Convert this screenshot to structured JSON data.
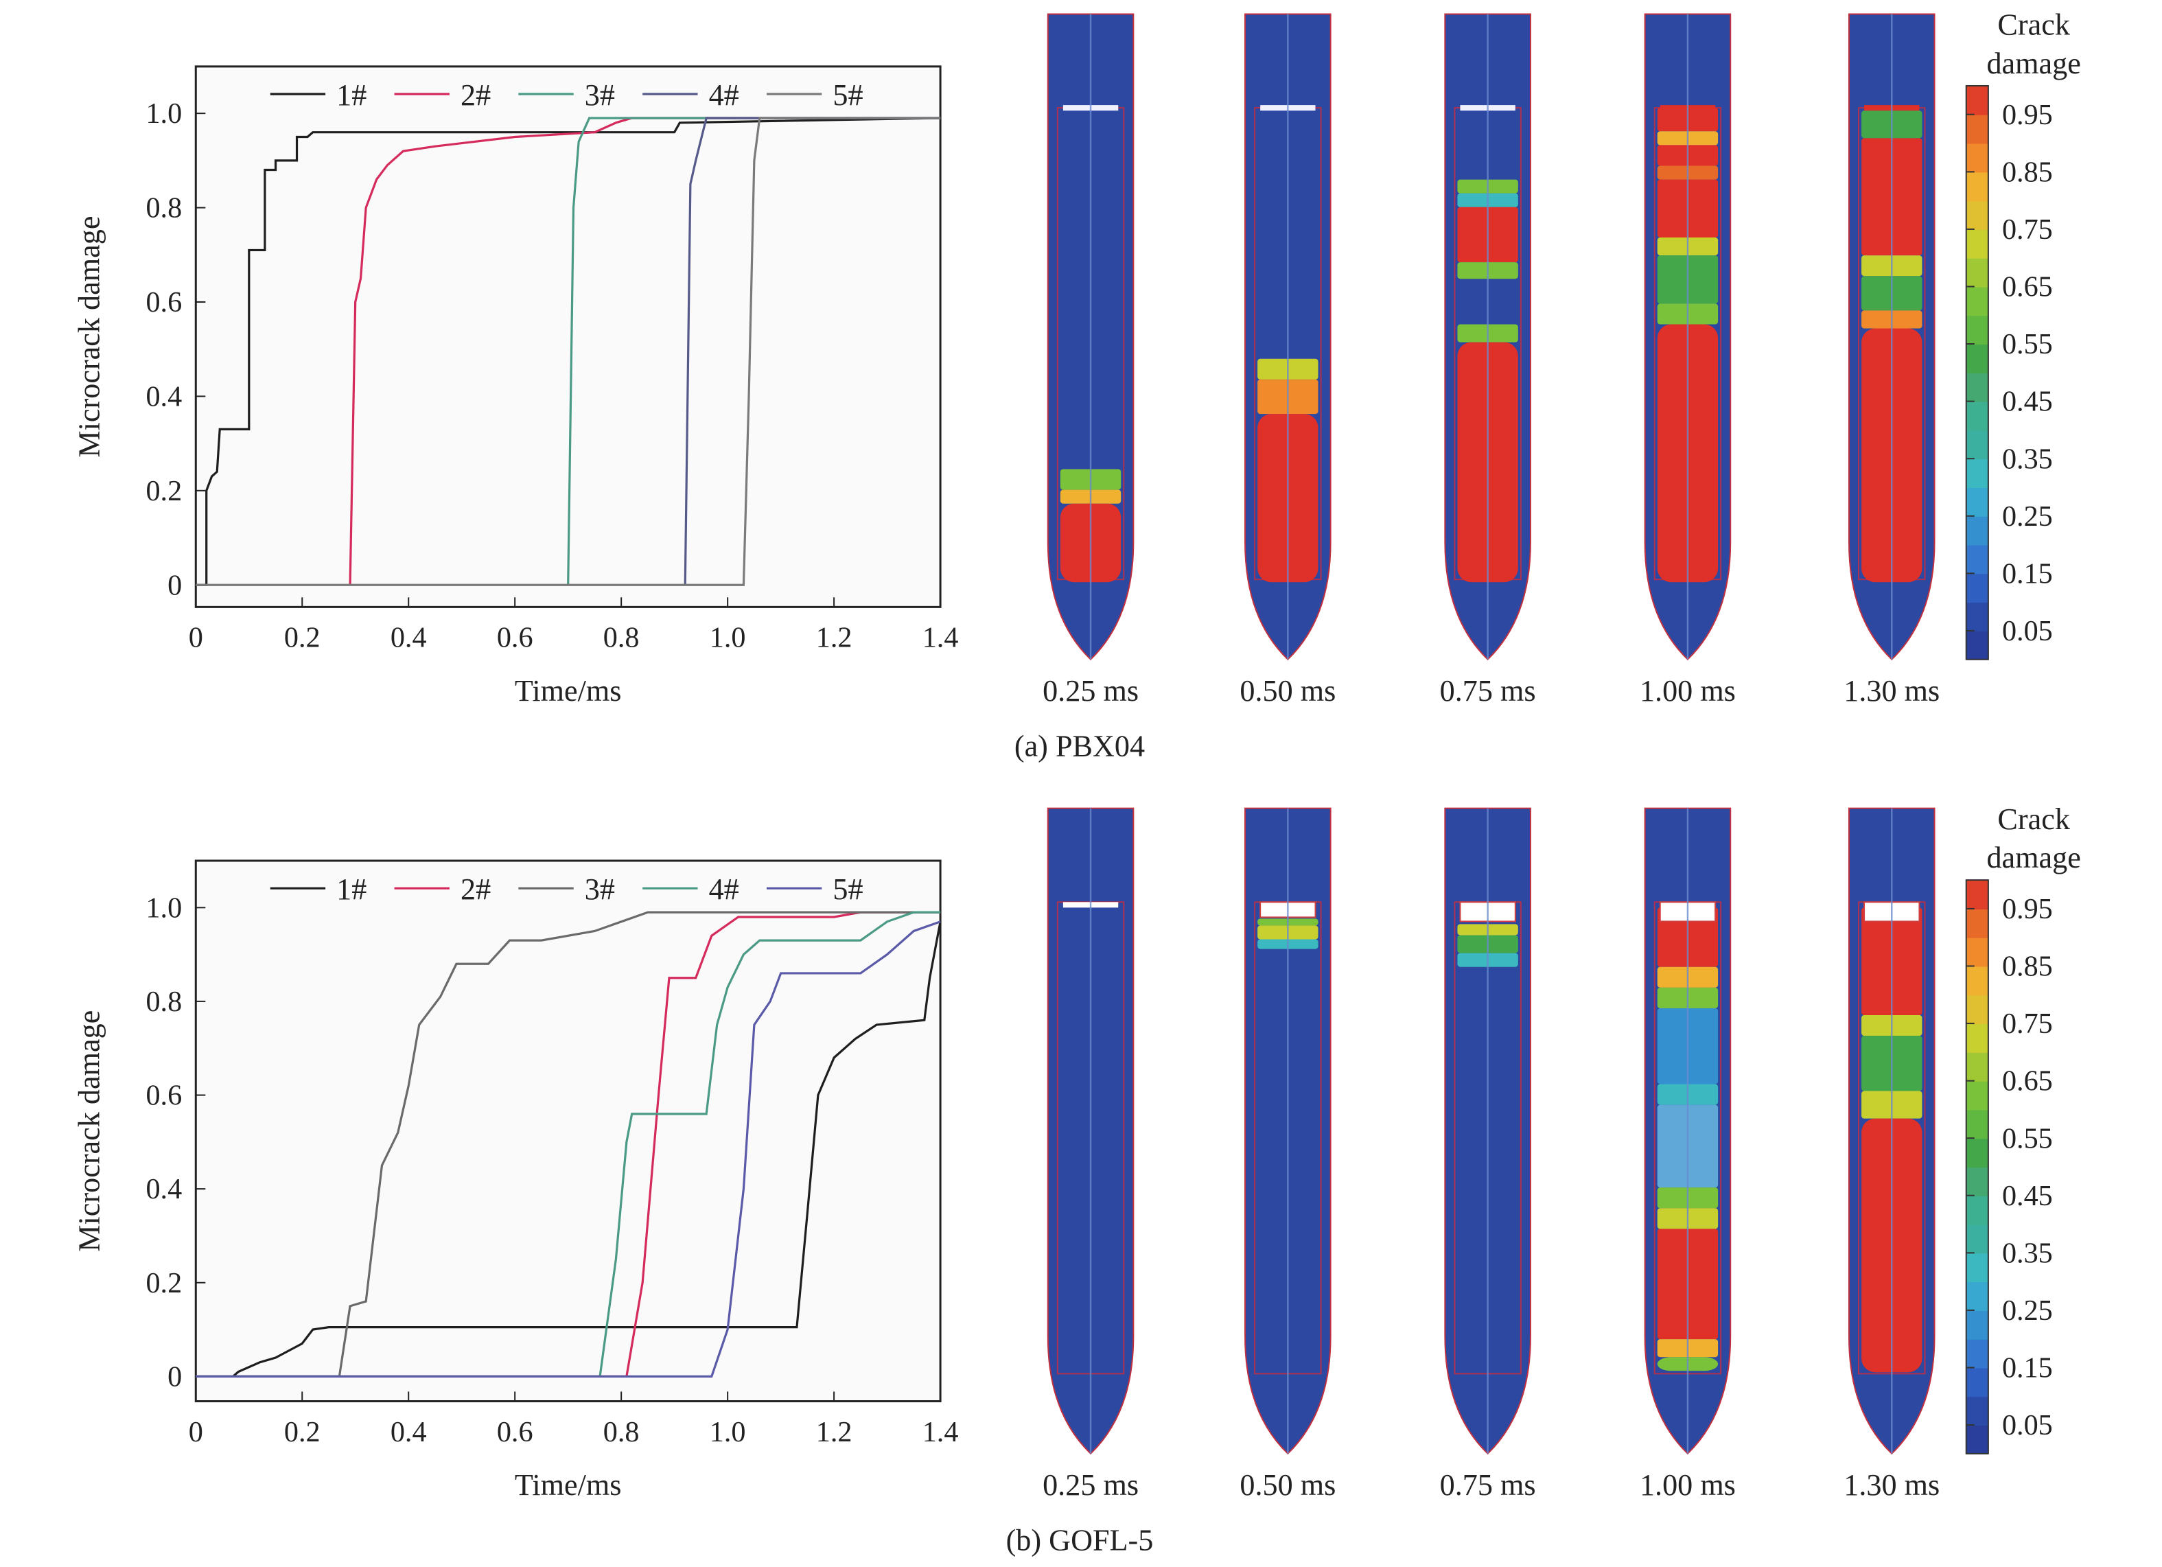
{
  "chart_data": [
    {
      "type": "line",
      "title": "",
      "xlabel": "Time/ms",
      "ylabel": "Microcrack damage",
      "xlim": [
        0,
        1.4
      ],
      "ylim": [
        0,
        1.1
      ],
      "xticks": [
        "0",
        "0.2",
        "0.4",
        "0.6",
        "0.8",
        "1.0",
        "1.2",
        "1.4"
      ],
      "yticks": [
        "0",
        "0.2",
        "0.4",
        "0.6",
        "0.8",
        "1.0"
      ],
      "legend": "top",
      "series": [
        {
          "name": "1#",
          "color": "#1e1e1e",
          "points": [
            [
              0,
              0
            ],
            [
              0.02,
              0
            ],
            [
              0.02,
              0.2
            ],
            [
              0.03,
              0.23
            ],
            [
              0.04,
              0.24
            ],
            [
              0.045,
              0.33
            ],
            [
              0.1,
              0.33
            ],
            [
              0.1,
              0.71
            ],
            [
              0.13,
              0.71
            ],
            [
              0.13,
              0.88
            ],
            [
              0.15,
              0.88
            ],
            [
              0.15,
              0.9
            ],
            [
              0.19,
              0.9
            ],
            [
              0.19,
              0.95
            ],
            [
              0.21,
              0.95
            ],
            [
              0.22,
              0.96
            ],
            [
              0.9,
              0.96
            ],
            [
              0.91,
              0.98
            ],
            [
              1.4,
              0.99
            ]
          ]
        },
        {
          "name": "2#",
          "color": "#d42a5c",
          "points": [
            [
              0.29,
              0
            ],
            [
              0.3,
              0.6
            ],
            [
              0.31,
              0.65
            ],
            [
              0.32,
              0.8
            ],
            [
              0.34,
              0.86
            ],
            [
              0.36,
              0.89
            ],
            [
              0.39,
              0.92
            ],
            [
              0.45,
              0.93
            ],
            [
              0.6,
              0.95
            ],
            [
              0.75,
              0.96
            ],
            [
              0.79,
              0.98
            ],
            [
              0.82,
              0.99
            ],
            [
              1.4,
              0.99
            ]
          ]
        },
        {
          "name": "3#",
          "color": "#4a9a86",
          "points": [
            [
              0.7,
              0
            ],
            [
              0.71,
              0.8
            ],
            [
              0.72,
              0.94
            ],
            [
              0.74,
              0.99
            ],
            [
              1.4,
              0.99
            ]
          ]
        },
        {
          "name": "4#",
          "color": "#555a8a",
          "points": [
            [
              0.92,
              0
            ],
            [
              0.93,
              0.85
            ],
            [
              0.94,
              0.9
            ],
            [
              0.96,
              0.99
            ],
            [
              1.4,
              0.99
            ]
          ]
        },
        {
          "name": "5#",
          "color": "#7a7a7a",
          "points": [
            [
              0,
              0
            ],
            [
              1.03,
              0
            ],
            [
              1.04,
              0.4
            ],
            [
              1.05,
              0.9
            ],
            [
              1.06,
              0.99
            ],
            [
              1.4,
              0.99
            ]
          ]
        }
      ]
    },
    {
      "type": "line",
      "title": "",
      "xlabel": "Time/ms",
      "ylabel": "Microcrack damage",
      "xlim": [
        0,
        1.4
      ],
      "ylim": [
        0,
        1.1
      ],
      "xticks": [
        "0",
        "0.2",
        "0.4",
        "0.6",
        "0.8",
        "1.0",
        "1.2",
        "1.4"
      ],
      "yticks": [
        "0",
        "0.2",
        "0.4",
        "0.6",
        "0.8",
        "1.0"
      ],
      "legend": "top",
      "series": [
        {
          "name": "1#",
          "color": "#1e1e1e",
          "points": [
            [
              0,
              0
            ],
            [
              0.07,
              0
            ],
            [
              0.08,
              0.01
            ],
            [
              0.12,
              0.03
            ],
            [
              0.15,
              0.04
            ],
            [
              0.2,
              0.07
            ],
            [
              0.22,
              0.1
            ],
            [
              0.25,
              0.105
            ],
            [
              1.13,
              0.105
            ],
            [
              1.15,
              0.35
            ],
            [
              1.17,
              0.6
            ],
            [
              1.2,
              0.68
            ],
            [
              1.24,
              0.72
            ],
            [
              1.28,
              0.75
            ],
            [
              1.37,
              0.76
            ],
            [
              1.38,
              0.85
            ],
            [
              1.4,
              0.97
            ]
          ]
        },
        {
          "name": "2#",
          "color": "#d42a5c",
          "points": [
            [
              0,
              0
            ],
            [
              0.81,
              0
            ],
            [
              0.84,
              0.2
            ],
            [
              0.87,
              0.6
            ],
            [
              0.89,
              0.85
            ],
            [
              0.94,
              0.85
            ],
            [
              0.97,
              0.94
            ],
            [
              1.02,
              0.98
            ],
            [
              1.2,
              0.98
            ],
            [
              1.25,
              0.99
            ],
            [
              1.4,
              0.99
            ]
          ]
        },
        {
          "name": "3#",
          "color": "#6a6a6a",
          "points": [
            [
              0,
              0
            ],
            [
              0.27,
              0
            ],
            [
              0.29,
              0.15
            ],
            [
              0.32,
              0.16
            ],
            [
              0.35,
              0.45
            ],
            [
              0.38,
              0.52
            ],
            [
              0.4,
              0.62
            ],
            [
              0.42,
              0.75
            ],
            [
              0.46,
              0.81
            ],
            [
              0.49,
              0.88
            ],
            [
              0.55,
              0.88
            ],
            [
              0.59,
              0.93
            ],
            [
              0.65,
              0.93
            ],
            [
              0.75,
              0.95
            ],
            [
              0.85,
              0.99
            ],
            [
              1.4,
              0.99
            ]
          ]
        },
        {
          "name": "4#",
          "color": "#4a9a86",
          "points": [
            [
              0,
              0
            ],
            [
              0.76,
              0
            ],
            [
              0.79,
              0.25
            ],
            [
              0.81,
              0.5
            ],
            [
              0.82,
              0.56
            ],
            [
              0.96,
              0.56
            ],
            [
              0.98,
              0.75
            ],
            [
              1.0,
              0.83
            ],
            [
              1.03,
              0.9
            ],
            [
              1.06,
              0.93
            ],
            [
              1.25,
              0.93
            ],
            [
              1.3,
              0.97
            ],
            [
              1.35,
              0.99
            ],
            [
              1.4,
              0.99
            ]
          ]
        },
        {
          "name": "5#",
          "color": "#5a5aa8",
          "points": [
            [
              0,
              0
            ],
            [
              0.97,
              0
            ],
            [
              1.0,
              0.1
            ],
            [
              1.03,
              0.4
            ],
            [
              1.05,
              0.75
            ],
            [
              1.08,
              0.8
            ],
            [
              1.1,
              0.86
            ],
            [
              1.25,
              0.86
            ],
            [
              1.3,
              0.9
            ],
            [
              1.35,
              0.95
            ],
            [
              1.4,
              0.97
            ]
          ]
        }
      ]
    }
  ],
  "rows": [
    {
      "caption": "(a) PBX04",
      "times": [
        "0.25 ms",
        "0.50 ms",
        "0.75 ms",
        "1.00 ms",
        "1.30 ms"
      ]
    },
    {
      "caption": "(b)  GOFL-5",
      "times": [
        "0.25 ms",
        "0.50 ms",
        "0.75 ms",
        "1.00 ms",
        "1.30 ms"
      ]
    }
  ],
  "colorbar": {
    "title_line1": "Crack",
    "title_line2": "damage",
    "labels": [
      "0.95",
      "0.85",
      "0.75",
      "0.65",
      "0.55",
      "0.45",
      "0.35",
      "0.25",
      "0.15",
      "0.05"
    ]
  },
  "colors": {
    "field_blue": "#2c48a0",
    "damage_red": "#e0302a"
  }
}
